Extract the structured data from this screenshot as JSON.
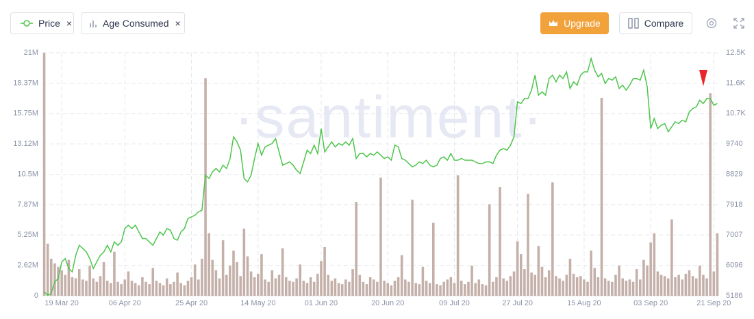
{
  "toolbar": {
    "upgrade": "Upgrade",
    "compare": "Compare"
  },
  "chart_data": {
    "type": "bar_line",
    "watermark": "·santiment·",
    "categories": [
      "14 Mar 20",
      "15 Mar 20",
      "16 Mar 20",
      "17 Mar 20",
      "18 Mar 20",
      "19 Mar 20",
      "20 Mar 20",
      "21 Mar 20",
      "22 Mar 20",
      "23 Mar 20",
      "24 Mar 20",
      "25 Mar 20",
      "26 Mar 20",
      "27 Mar 20",
      "28 Mar 20",
      "29 Mar 20",
      "30 Mar 20",
      "31 Mar 20",
      "01 Apr 20",
      "02 Apr 20",
      "03 Apr 20",
      "04 Apr 20",
      "05 Apr 20",
      "06 Apr 20",
      "07 Apr 20",
      "08 Apr 20",
      "09 Apr 20",
      "10 Apr 20",
      "11 Apr 20",
      "12 Apr 20",
      "13 Apr 20",
      "14 Apr 20",
      "15 Apr 20",
      "16 Apr 20",
      "17 Apr 20",
      "18 Apr 20",
      "19 Apr 20",
      "20 Apr 20",
      "21 Apr 20",
      "22 Apr 20",
      "23 Apr 20",
      "24 Apr 20",
      "25 Apr 20",
      "26 Apr 20",
      "27 Apr 20",
      "28 Apr 20",
      "29 Apr 20",
      "30 Apr 20",
      "01 May 20",
      "02 May 20",
      "03 May 20",
      "04 May 20",
      "05 May 20",
      "06 May 20",
      "07 May 20",
      "08 May 20",
      "09 May 20",
      "10 May 20",
      "11 May 20",
      "12 May 20",
      "13 May 20",
      "14 May 20",
      "15 May 20",
      "16 May 20",
      "17 May 20",
      "18 May 20",
      "19 May 20",
      "20 May 20",
      "21 May 20",
      "22 May 20",
      "23 May 20",
      "24 May 20",
      "25 May 20",
      "26 May 20",
      "27 May 20",
      "28 May 20",
      "29 May 20",
      "30 May 20",
      "31 May 20",
      "01 Jun 20",
      "02 Jun 20",
      "03 Jun 20",
      "04 Jun 20",
      "05 Jun 20",
      "06 Jun 20",
      "07 Jun 20",
      "08 Jun 20",
      "09 Jun 20",
      "10 Jun 20",
      "11 Jun 20",
      "12 Jun 20",
      "13 Jun 20",
      "14 Jun 20",
      "15 Jun 20",
      "16 Jun 20",
      "17 Jun 20",
      "18 Jun 20",
      "19 Jun 20",
      "20 Jun 20",
      "21 Jun 20",
      "22 Jun 20",
      "23 Jun 20",
      "24 Jun 20",
      "25 Jun 20",
      "26 Jun 20",
      "27 Jun 20",
      "28 Jun 20",
      "29 Jun 20",
      "30 Jun 20",
      "01 Jul 20",
      "02 Jul 20",
      "03 Jul 20",
      "04 Jul 20",
      "05 Jul 20",
      "06 Jul 20",
      "07 Jul 20",
      "08 Jul 20",
      "09 Jul 20",
      "10 Jul 20",
      "11 Jul 20",
      "12 Jul 20",
      "13 Jul 20",
      "14 Jul 20",
      "15 Jul 20",
      "16 Jul 20",
      "17 Jul 20",
      "18 Jul 20",
      "19 Jul 20",
      "20 Jul 20",
      "21 Jul 20",
      "22 Jul 20",
      "23 Jul 20",
      "24 Jul 20",
      "25 Jul 20",
      "26 Jul 20",
      "27 Jul 20",
      "28 Jul 20",
      "29 Jul 20",
      "30 Jul 20",
      "31 Jul 20",
      "01 Aug 20",
      "02 Aug 20",
      "03 Aug 20",
      "04 Aug 20",
      "05 Aug 20",
      "06 Aug 20",
      "07 Aug 20",
      "08 Aug 20",
      "09 Aug 20",
      "10 Aug 20",
      "11 Aug 20",
      "12 Aug 20",
      "13 Aug 20",
      "14 Aug 20",
      "15 Aug 20",
      "16 Aug 20",
      "17 Aug 20",
      "18 Aug 20",
      "19 Aug 20",
      "20 Aug 20",
      "21 Aug 20",
      "22 Aug 20",
      "23 Aug 20",
      "24 Aug 20",
      "25 Aug 20",
      "26 Aug 20",
      "27 Aug 20",
      "28 Aug 20",
      "29 Aug 20",
      "30 Aug 20",
      "31 Aug 20",
      "01 Sep 20",
      "02 Sep 20",
      "03 Sep 20",
      "04 Sep 20",
      "05 Sep 20",
      "06 Sep 20",
      "07 Sep 20",
      "08 Sep 20",
      "09 Sep 20",
      "10 Sep 20",
      "11 Sep 20",
      "12 Sep 20",
      "13 Sep 20",
      "14 Sep 20",
      "15 Sep 20",
      "16 Sep 20",
      "17 Sep 20",
      "18 Sep 20",
      "19 Sep 20",
      "20 Sep 20",
      "21 Sep 20",
      "22 Sep 20"
    ],
    "xticks": [
      "19 Mar 20",
      "06 Apr 20",
      "25 Apr 20",
      "14 May 20",
      "01 Jun 20",
      "20 Jun 20",
      "09 Jul 20",
      "27 Jul 20",
      "15 Aug 20",
      "03 Sep 20",
      "21 Sep 20"
    ],
    "series": [
      {
        "name": "Price",
        "color": "#4cc54a",
        "axis": "y2",
        "kind": "line",
        "values": [
          5300,
          5200,
          5250,
          5600,
          5700,
          6200,
          6300,
          6000,
          5900,
          6400,
          6700,
          6600,
          6500,
          6300,
          6000,
          6200,
          6400,
          6500,
          6700,
          6500,
          6800,
          6700,
          6800,
          7200,
          7300,
          7200,
          7300,
          7100,
          6900,
          6900,
          6800,
          6700,
          6900,
          7100,
          7000,
          7200,
          7150,
          6900,
          6850,
          7100,
          7200,
          7500,
          7550,
          7600,
          7700,
          7750,
          8800,
          8700,
          8900,
          9000,
          8900,
          9100,
          9000,
          9300,
          9950,
          9800,
          9550,
          8700,
          8600,
          8800,
          9300,
          9750,
          9400,
          9650,
          9700,
          9750,
          9900,
          9500,
          9100,
          9150,
          9200,
          9100,
          8950,
          8850,
          9200,
          9550,
          9450,
          9700,
          9450,
          10200,
          9500,
          9650,
          9800,
          9650,
          9750,
          9700,
          9800,
          9700,
          9900,
          9300,
          9450,
          9450,
          9350,
          9450,
          9400,
          9500,
          9400,
          9300,
          9350,
          9250,
          9700,
          9650,
          9300,
          9250,
          9150,
          9050,
          9100,
          9200,
          9150,
          9250,
          9100,
          9050,
          9100,
          9300,
          9350,
          9250,
          9450,
          9250,
          9250,
          9300,
          9250,
          9250,
          9250,
          9200,
          9150,
          9150,
          9200,
          9200,
          9150,
          9400,
          9550,
          9600,
          9550,
          9700,
          9950,
          11000,
          10950,
          11100,
          11100,
          11350,
          11800,
          11200,
          11300,
          11200,
          11700,
          11800,
          11600,
          11800,
          11700,
          11900,
          11400,
          11600,
          11500,
          11800,
          11900,
          11900,
          12300,
          11950,
          11750,
          11850,
          11550,
          11700,
          11650,
          11750,
          11400,
          11500,
          11350,
          11500,
          11700,
          11700,
          11650,
          11950,
          11450,
          10200,
          10500,
          10200,
          10300,
          10350,
          10100,
          10250,
          10400,
          10350,
          10450,
          10400,
          10700,
          10800,
          10850,
          11050,
          10950,
          11100,
          11100,
          10900,
          10950
        ]
      },
      {
        "name": "Age Consumed",
        "color": "#c4b0a9",
        "axis": "y",
        "kind": "bar",
        "values": [
          21000000,
          4500000,
          3200000,
          2800000,
          2500000,
          2200000,
          1800000,
          3100000,
          1600000,
          1500000,
          2300000,
          1400000,
          1300000,
          2600000,
          1500000,
          1200000,
          1700000,
          2900000,
          1300000,
          1100000,
          3800000,
          1200000,
          1000000,
          1400000,
          2100000,
          1300000,
          1100000,
          900000,
          1600000,
          1200000,
          1000000,
          2400000,
          1300000,
          1100000,
          900000,
          1500000,
          1000000,
          1200000,
          2000000,
          1100000,
          900000,
          1300000,
          1600000,
          2700000,
          1400000,
          3200000,
          18800000,
          5400000,
          3100000,
          2200000,
          1500000,
          4800000,
          1800000,
          2600000,
          3900000,
          2900000,
          1700000,
          5800000,
          3400000,
          2100000,
          1600000,
          1900000,
          3600000,
          1400000,
          1200000,
          2200000,
          1500000,
          1800000,
          4100000,
          1600000,
          1300000,
          1200000,
          1500000,
          2700000,
          1300000,
          1100000,
          1600000,
          1200000,
          1900000,
          3000000,
          4200000,
          1800000,
          1300000,
          1500000,
          1100000,
          1000000,
          1400000,
          1200000,
          2300000,
          8100000,
          1800000,
          1200000,
          1000000,
          1600000,
          1400000,
          1200000,
          10200000,
          1300000,
          1100000,
          900000,
          1300000,
          1600000,
          3500000,
          1400000,
          1200000,
          8300000,
          1100000,
          1000000,
          2500000,
          1300000,
          1100000,
          6300000,
          1000000,
          900000,
          1200000,
          1400000,
          1600000,
          1100000,
          10400000,
          1300000,
          1000000,
          1200000,
          2600000,
          1100000,
          1400000,
          1000000,
          900000,
          7900000,
          1200000,
          1600000,
          9400000,
          1500000,
          1300000,
          1700000,
          2100000,
          4700000,
          3600000,
          2300000,
          8800000,
          2000000,
          1800000,
          4300000,
          2500000,
          1600000,
          2200000,
          9800000,
          1700000,
          1500000,
          1300000,
          1800000,
          3200000,
          1900000,
          1600000,
          1700000,
          1400000,
          1200000,
          3900000,
          2400000,
          1600000,
          17100000,
          1500000,
          1300000,
          1200000,
          1800000,
          2600000,
          1500000,
          1300000,
          1400000,
          1200000,
          2300000,
          1400000,
          3100000,
          2600000,
          4600000,
          5400000,
          2100000,
          1800000,
          1700000,
          1500000,
          6600000,
          1600000,
          1800000,
          1400000,
          1900000,
          2200000,
          1700000,
          1500000,
          2600000,
          1800000,
          1500000,
          17500000,
          2100000,
          5400000
        ]
      }
    ],
    "ylim": [
      0,
      21000000
    ],
    "yticks": [
      0,
      {
        "value": 2625000,
        "label": "2.62M"
      },
      {
        "value": 5250000,
        "label": "5.25M"
      },
      {
        "value": 7875000,
        "label": "7.87M"
      },
      {
        "value": 10500000,
        "label": "10.5M"
      },
      {
        "value": 13125000,
        "label": "13.12M"
      },
      {
        "value": 15750000,
        "label": "15.75M"
      },
      {
        "value": 18375000,
        "label": "18.37M"
      },
      {
        "value": 21000000,
        "label": "21M"
      }
    ],
    "y2lim": [
      5186,
      12474
    ],
    "y2ticks": [
      5186,
      6096,
      7007,
      7918,
      8829,
      9740,
      {
        "value": 10651,
        "label": "10.7K"
      },
      {
        "value": 11562,
        "label": "11.6K"
      },
      {
        "value": 12474,
        "label": "12.5K"
      }
    ],
    "grid": true
  }
}
